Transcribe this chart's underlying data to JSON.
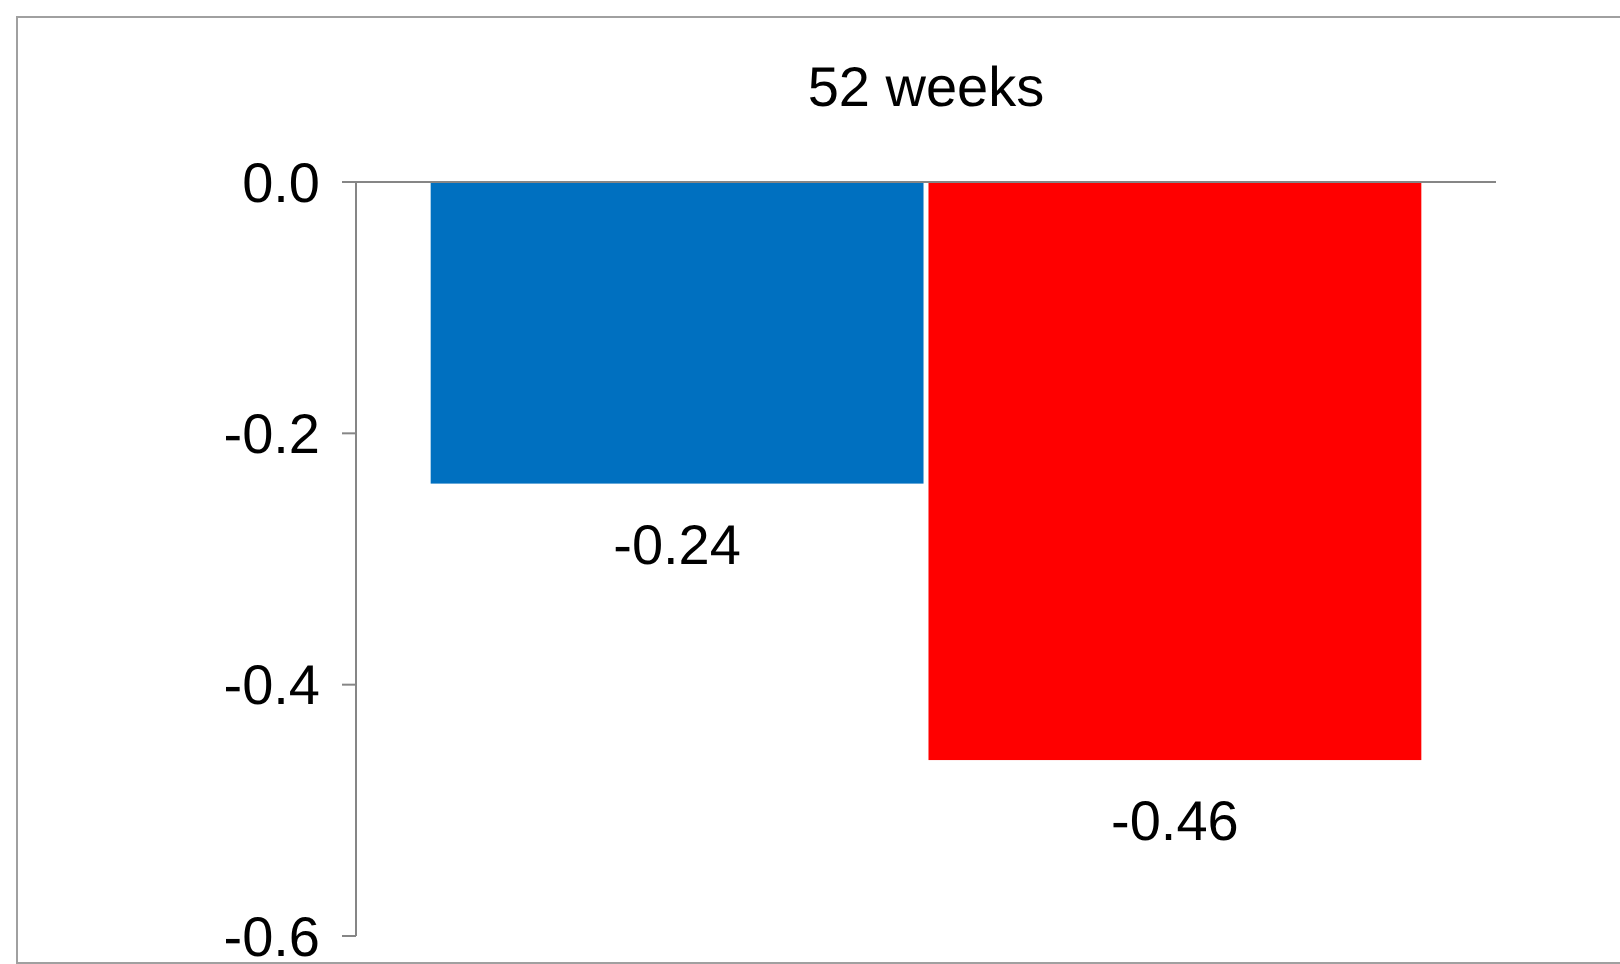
{
  "chart_data": {
    "type": "bar",
    "title": "52 weeks",
    "categories": [
      null,
      null
    ],
    "values": [
      -0.24,
      -0.46
    ],
    "colors": [
      "#0070c0",
      "#ff0000"
    ],
    "ylim": [
      -0.6,
      0
    ],
    "yticks": [
      {
        "value": 0,
        "label": "0.0"
      },
      -0.2,
      -0.4,
      -0.6
    ],
    "data_labels": true
  }
}
